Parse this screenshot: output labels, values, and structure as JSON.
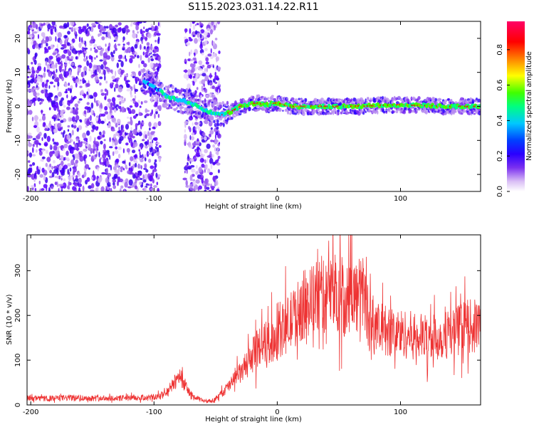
{
  "title": "S115.2023.031.14.22.R11",
  "chart_data": [
    {
      "type": "heatmap",
      "xlabel": "Height of straight line (km)",
      "ylabel": "Frequency (Hz)",
      "xlim": [
        -203,
        165
      ],
      "ylim": [
        -25,
        25
      ],
      "xticks": [
        "-200",
        "-100",
        "0",
        "100"
      ],
      "xtick_values": [
        -200,
        -100,
        0,
        100
      ],
      "yticks": [
        "-20",
        "-10",
        "0",
        "10",
        "20"
      ],
      "ytick_values": [
        -20,
        -10,
        0,
        10,
        20
      ],
      "colorbar": {
        "label": "Normalized spectral amplitude",
        "ticks": [
          "0.0",
          "0.2",
          "0.4",
          "0.6",
          "0.8"
        ],
        "tick_values": [
          0.0,
          0.2,
          0.4,
          0.6,
          0.8
        ],
        "range": [
          0,
          0.96
        ],
        "colormap": [
          "#ffffff",
          "#d9bdf5",
          "#8f3ff0",
          "#4a00ff",
          "#0000ff",
          "#00c8ff",
          "#00ff80",
          "#40ff00",
          "#ffff00",
          "#ff8000",
          "#ff0000",
          "#ff0066"
        ]
      },
      "noise_region_x": [
        -203,
        -95
      ],
      "noise_region_x2": [
        -75,
        -47
      ],
      "ridge": {
        "x": [
          -110,
          -100,
          -90,
          -80,
          -70,
          -60,
          -50,
          -45,
          -40,
          -35,
          -30,
          -25,
          -20,
          -15,
          -10,
          -5,
          0,
          10,
          30,
          60,
          100,
          140,
          165
        ],
        "y": [
          8,
          6,
          3,
          2,
          1,
          -1,
          -2,
          -2.5,
          -2,
          -1,
          0,
          0.5,
          0.8,
          1,
          0.5,
          0.8,
          1,
          0,
          0,
          0,
          0.5,
          0,
          0
        ]
      }
    },
    {
      "type": "line",
      "xlabel": "Height of straight line (km)",
      "ylabel": "SNR (10 * v/v)",
      "xlim": [
        -203,
        165
      ],
      "ylim": [
        0,
        380
      ],
      "xticks": [
        "-200",
        "-100",
        "0",
        "100"
      ],
      "xtick_values": [
        -200,
        -100,
        0,
        100
      ],
      "yticks": [
        "0",
        "100",
        "200",
        "300"
      ],
      "ytick_values": [
        0,
        100,
        200,
        300
      ],
      "color": "#ee3333",
      "series": [
        {
          "x": [
            -203,
            -190,
            -170,
            -150,
            -130,
            -110,
            -100,
            -92,
            -86,
            -82,
            -79,
            -76,
            -73,
            -70,
            -66,
            -60,
            -55,
            -50,
            -45,
            -40,
            -35,
            -30,
            -25,
            -20,
            -15,
            -10,
            -5,
            0,
            5,
            10,
            15,
            20,
            25,
            30,
            35,
            40,
            45,
            50,
            55,
            60,
            65,
            70,
            75,
            80,
            90,
            100,
            110,
            120,
            130,
            140,
            150,
            155,
            160,
            165
          ],
          "values": [
            15,
            14,
            16,
            15,
            15,
            16,
            17,
            22,
            40,
            55,
            70,
            50,
            35,
            22,
            15,
            10,
            9,
            12,
            25,
            40,
            55,
            70,
            90,
            110,
            130,
            140,
            140,
            150,
            170,
            185,
            200,
            220,
            230,
            235,
            250,
            240,
            255,
            250,
            230,
            250,
            240,
            255,
            180,
            170,
            165,
            160,
            155,
            150,
            150,
            160,
            170,
            175,
            175,
            180
          ]
        }
      ]
    }
  ]
}
